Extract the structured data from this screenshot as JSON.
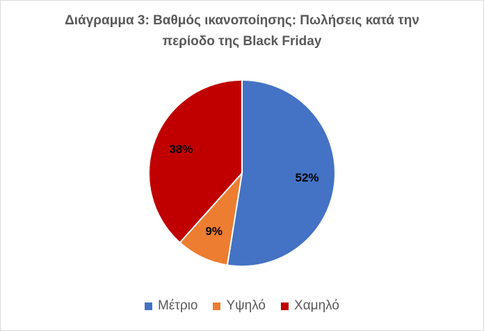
{
  "chart_data": {
    "type": "pie",
    "title": "Διάγραμμα 3: Βαθμός ικανοποίησης: Πωλήσεις κατά την περίοδο της Black Friday",
    "categories": [
      "Μέτριο",
      "Υψηλό",
      "Χαμηλό"
    ],
    "values": [
      52,
      9,
      38
    ],
    "value_labels": [
      "52%",
      "9%",
      "38%"
    ],
    "colors": [
      "#4472c4",
      "#ed7d31",
      "#c00000"
    ],
    "legend": "bottom"
  }
}
